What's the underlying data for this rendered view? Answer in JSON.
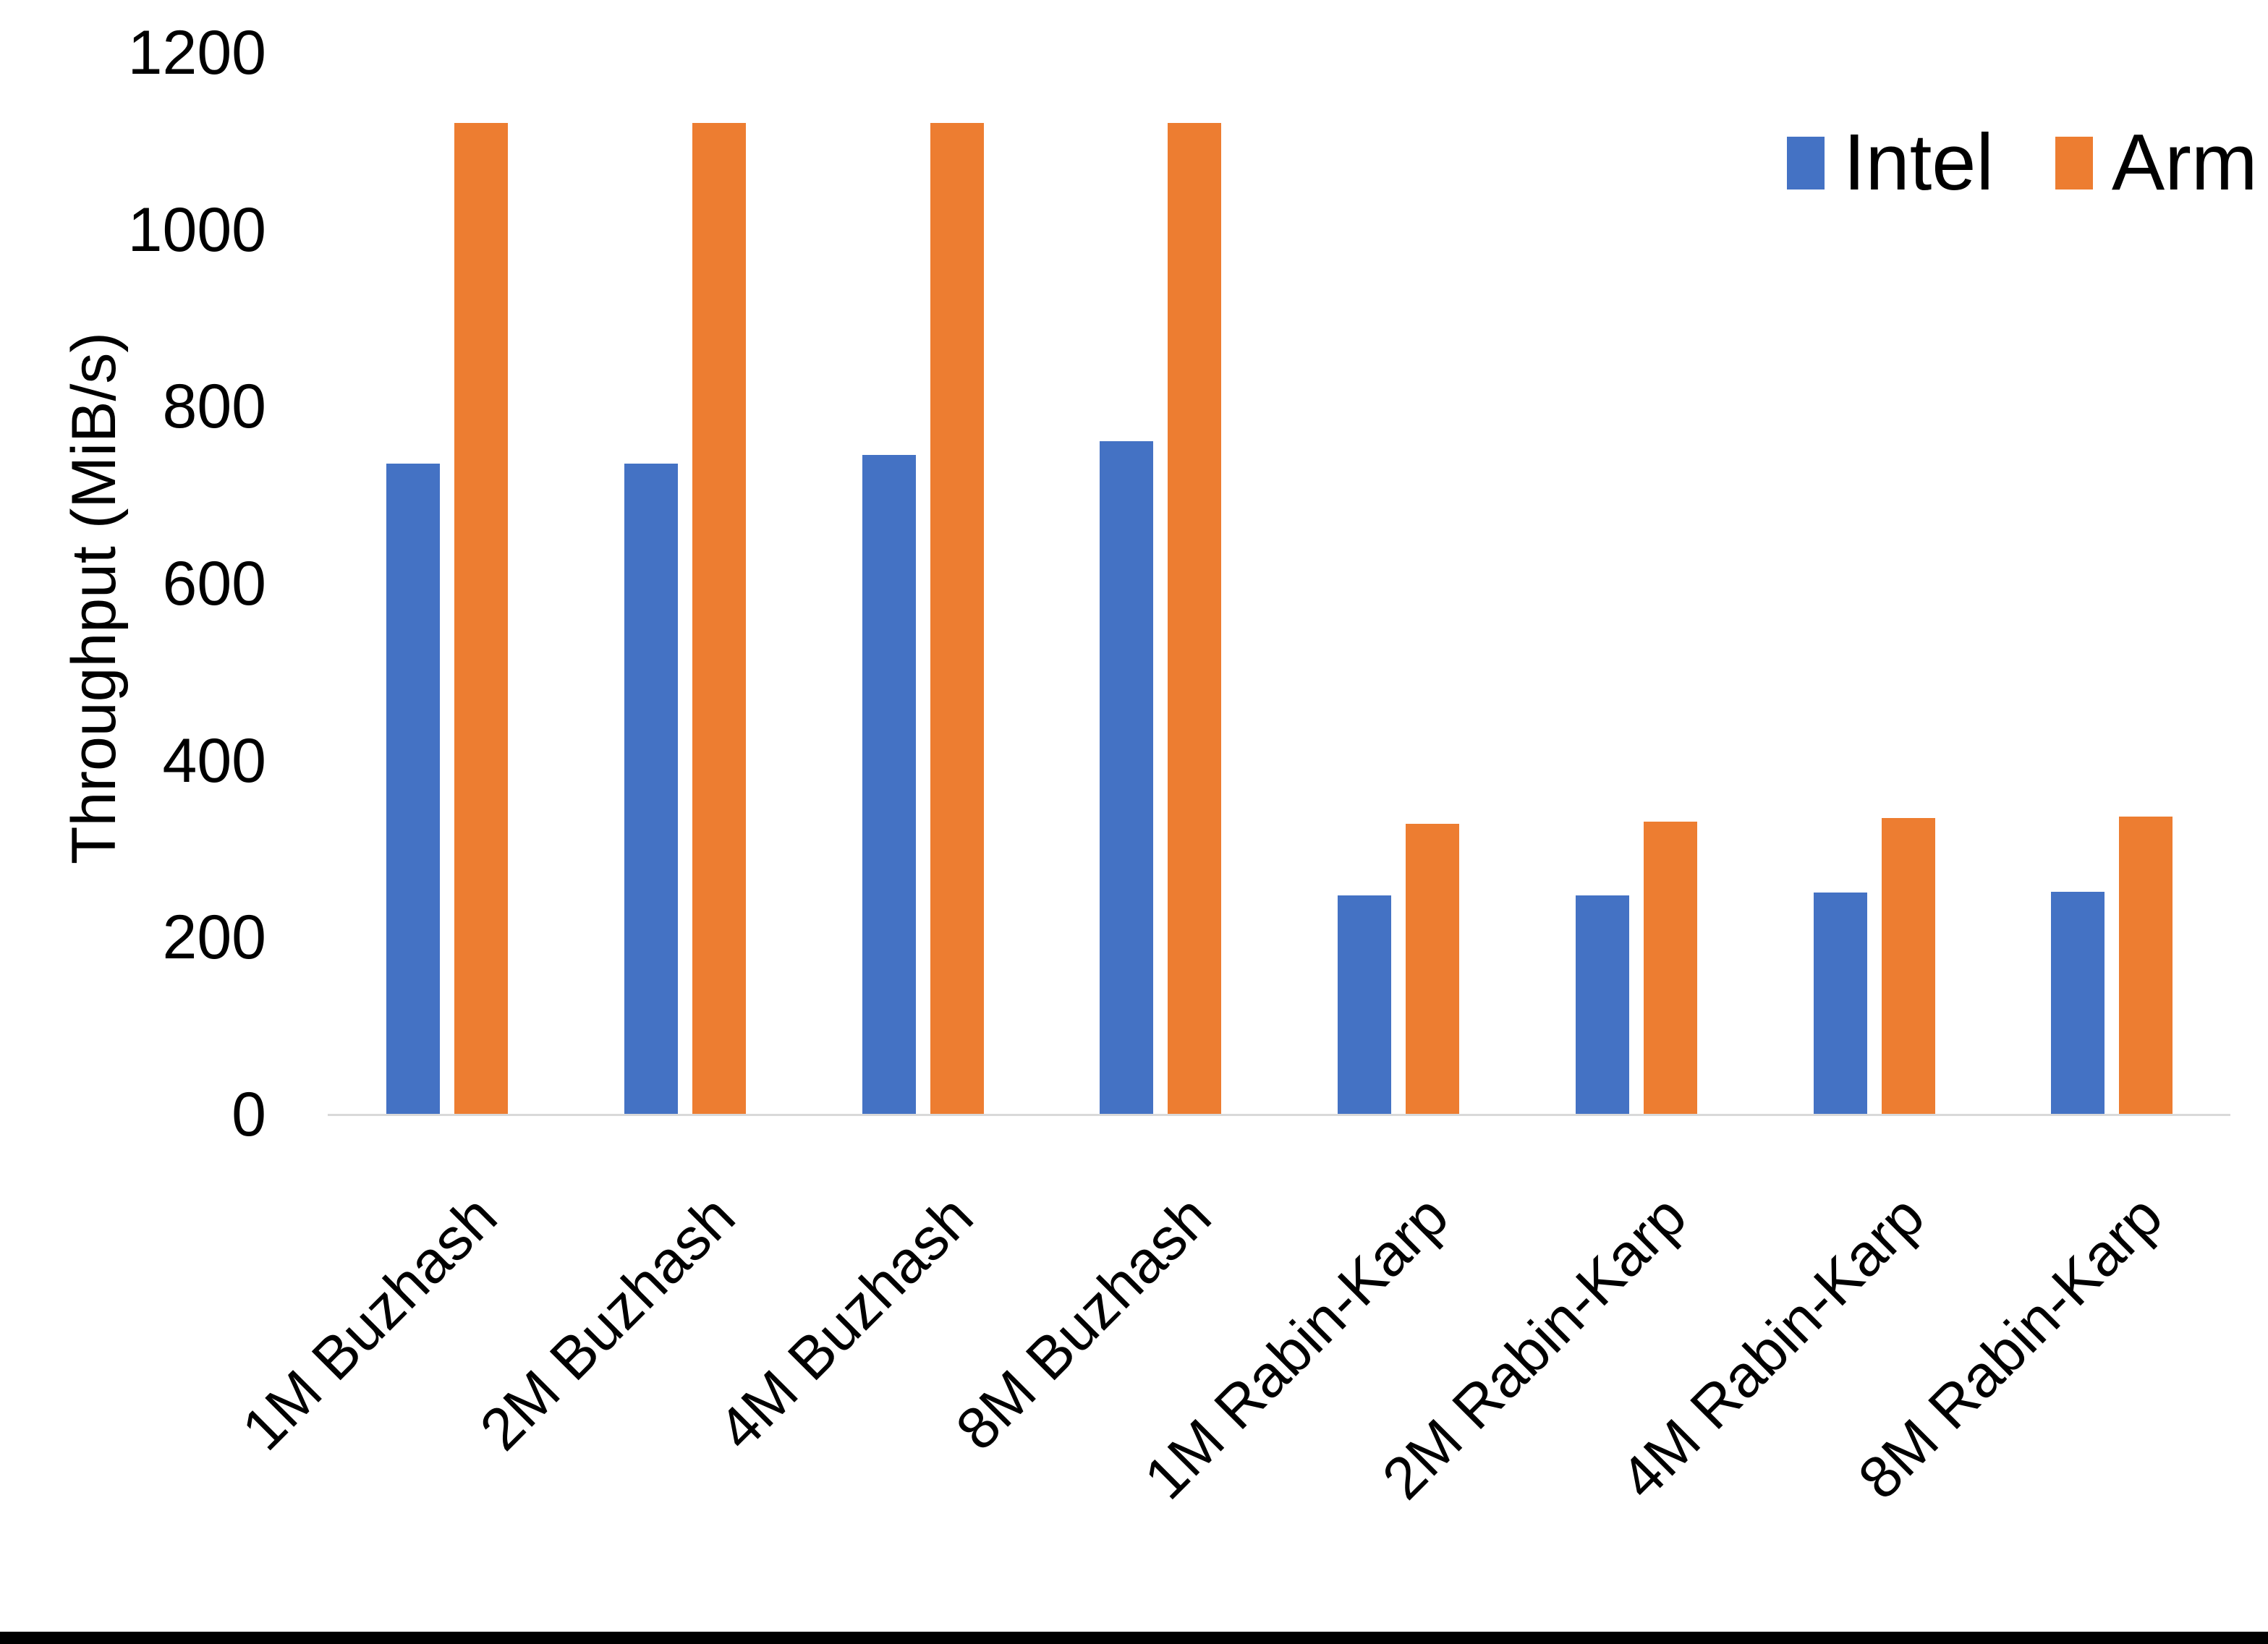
{
  "chart_data": {
    "type": "bar",
    "title": "",
    "ylabel": "Throughput (MiB/s)",
    "xlabel": "",
    "ylim": [
      0,
      1200
    ],
    "yticks": [
      0,
      200,
      400,
      600,
      800,
      1000,
      1200
    ],
    "grid": false,
    "legend_position": "top-right",
    "categories": [
      "1M Buzhash",
      "2M Buzhash",
      "4M Buzhash",
      "8M Buzhash",
      "1M Rabin-Karp",
      "2M Rabin-Karp",
      "4M Rabin-Karp",
      "8M Rabin-Karp"
    ],
    "series": [
      {
        "name": "Intel",
        "color": "#4472C4",
        "values": [
          735,
          735,
          745,
          760,
          247,
          247,
          250,
          251
        ]
      },
      {
        "name": "Arm",
        "color": "#ED7D31",
        "values": [
          1120,
          1120,
          1120,
          1120,
          328,
          330,
          334,
          336
        ]
      }
    ]
  },
  "legend": {
    "items": [
      {
        "label": "Intel",
        "color": "#4472C4"
      },
      {
        "label": "Arm",
        "color": "#ED7D31"
      }
    ]
  }
}
